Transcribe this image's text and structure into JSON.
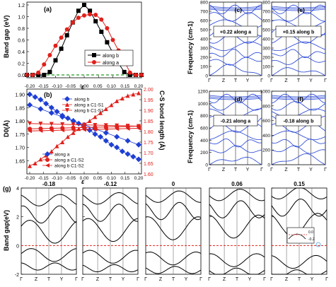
{
  "chart_data": [
    {
      "id": "a",
      "type": "line",
      "panel_label": "(a)",
      "xlabel": "ε",
      "ylabel": "Band gap (eV)",
      "xlim": [
        -0.2,
        0.2
      ],
      "ylim": [
        0.0,
        1.2
      ],
      "x_ticks": [
        "-0.20",
        "-0.15",
        "-0.10",
        "-0.05",
        "0.00",
        "0.05",
        "0.10",
        "0.15",
        "0.20"
      ],
      "y_ticks": [
        "0.0",
        "0.2",
        "0.4",
        "0.6",
        "0.8",
        "1.0",
        "1.2"
      ],
      "legend": [
        "along b",
        "along a"
      ],
      "legend_position": "right",
      "series": [
        {
          "name": "along b",
          "color": "#000000",
          "marker": "square",
          "x": [
            -0.2,
            -0.18,
            -0.16,
            -0.14,
            -0.12,
            -0.1,
            -0.08,
            -0.06,
            -0.04,
            -0.02,
            0.0,
            0.02,
            0.04,
            0.06,
            0.08,
            0.1,
            0.12,
            0.14,
            0.16,
            0.18,
            0.2
          ],
          "values": [
            0.0,
            0.0,
            0.0,
            0.0,
            0.05,
            0.25,
            0.45,
            0.68,
            0.9,
            1.1,
            1.2,
            1.1,
            0.92,
            0.74,
            0.56,
            0.38,
            0.2,
            0.05,
            0.0,
            0.0,
            0.0
          ]
        },
        {
          "name": "along a",
          "color": "#e0201b",
          "marker": "circle",
          "x": [
            -0.2,
            -0.18,
            -0.16,
            -0.14,
            -0.12,
            -0.1,
            -0.08,
            -0.06,
            -0.04,
            -0.02,
            0.0,
            0.02,
            0.04,
            0.06,
            0.08,
            0.1,
            0.12,
            0.14,
            0.16,
            0.18,
            0.2
          ],
          "values": [
            0.0,
            0.0,
            0.04,
            0.18,
            0.34,
            0.5,
            0.64,
            0.78,
            0.9,
            0.98,
            1.02,
            1.04,
            1.03,
            0.95,
            0.8,
            0.6,
            0.42,
            0.24,
            0.04,
            0.0,
            0.0
          ]
        }
      ],
      "reference_line": {
        "y": 0.0,
        "style": "dashed",
        "color": "#1f9a1f"
      }
    },
    {
      "id": "b",
      "type": "line",
      "panel_label": "(b)",
      "xlabel": "ε",
      "ylabel": "D0(Å)",
      "y2label": "C-S bond length (Å)",
      "xlim": [
        -0.2,
        0.2
      ],
      "ylim": [
        1.6,
        1.92
      ],
      "y2lim": [
        1.6,
        2.0
      ],
      "x_ticks": [
        "-0.20",
        "-0.15",
        "-0.10",
        "-0.05",
        "0.00",
        "0.05",
        "0.10",
        "0.15",
        "0.20"
      ],
      "y_ticks": [
        "1.65",
        "1.70",
        "1.75",
        "1.80",
        "1.85",
        "1.90"
      ],
      "y2_ticks": [
        "1.60",
        "1.65",
        "1.70",
        "1.75",
        "1.80",
        "1.85",
        "1.90",
        "1.95",
        "2.00"
      ],
      "legend_top": [
        "along b",
        "along a C1-S1",
        "along b C1-S1"
      ],
      "legend_bottom": [
        "along a",
        "along a C1-S2",
        "along b C1-S2"
      ],
      "series": [
        {
          "name": "along b",
          "color": "#1f3fd4",
          "marker": "diamond",
          "x": [
            -0.2,
            -0.18,
            -0.16,
            -0.14,
            -0.12,
            -0.1,
            -0.08,
            -0.06,
            -0.04,
            -0.02,
            0.0,
            0.02,
            0.04,
            0.06,
            0.08,
            0.1,
            0.12,
            0.14,
            0.16,
            0.18,
            0.2
          ],
          "values": [
            1.9,
            1.89,
            1.88,
            1.865,
            1.85,
            1.835,
            1.82,
            1.81,
            1.8,
            1.79,
            1.775,
            1.765,
            1.75,
            1.74,
            1.725,
            1.71,
            1.7,
            1.685,
            1.675,
            1.665,
            1.655
          ]
        },
        {
          "name": "along a",
          "color": "#1f3fd4",
          "marker": "diamond",
          "x": [
            -0.2,
            -0.16,
            -0.12,
            -0.08,
            -0.04,
            0.0,
            0.04,
            0.08,
            0.12,
            0.16,
            0.2
          ],
          "values": [
            1.86,
            1.845,
            1.83,
            1.815,
            1.8,
            1.785,
            1.77,
            1.755,
            1.74,
            1.725,
            1.71
          ]
        },
        {
          "name": "along a C1-S1",
          "color": "#e0201b",
          "marker": "triangle-up",
          "x": [
            -0.2,
            -0.18,
            -0.16,
            -0.14,
            -0.12,
            -0.1,
            -0.08,
            -0.06,
            -0.04,
            -0.02,
            0.0,
            0.02,
            0.04,
            0.06,
            0.08,
            0.1,
            0.12,
            0.14,
            0.16,
            0.18,
            0.2
          ],
          "values": [
            1.63,
            1.64,
            1.655,
            1.67,
            1.685,
            1.705,
            1.72,
            1.74,
            1.755,
            1.77,
            1.785,
            1.8,
            1.815,
            1.83,
            1.845,
            1.86,
            1.875,
            1.885,
            1.895,
            1.9,
            1.905
          ]
        },
        {
          "name": "along b C1-S1",
          "color": "#e0201b",
          "marker": "triangle-down",
          "x": [
            -0.2,
            -0.16,
            -0.12,
            -0.08,
            -0.04,
            0.0,
            0.04,
            0.08,
            0.12,
            0.16,
            0.2
          ],
          "values": [
            1.79,
            1.789,
            1.788,
            1.787,
            1.786,
            1.785,
            1.784,
            1.783,
            1.782,
            1.781,
            1.78
          ]
        },
        {
          "name": "along a C1-S2",
          "color": "#e0201b",
          "marker": "circle",
          "x": [
            -0.2,
            -0.16,
            -0.12,
            -0.08,
            -0.04,
            0.0,
            0.04,
            0.08,
            0.12,
            0.16,
            0.2
          ],
          "values": [
            1.77,
            1.771,
            1.772,
            1.773,
            1.774,
            1.775,
            1.776,
            1.777,
            1.778,
            1.779,
            1.78
          ]
        },
        {
          "name": "along b C1-S2",
          "color": "#e0201b",
          "marker": "triangle-left",
          "x": [
            -0.2,
            -0.16,
            -0.12,
            -0.08,
            -0.04,
            0.0,
            0.04,
            0.08,
            0.12,
            0.16,
            0.2
          ],
          "values": [
            1.762,
            1.763,
            1.764,
            1.765,
            1.766,
            1.767,
            1.768,
            1.769,
            1.77,
            1.771,
            1.772
          ]
        }
      ]
    },
    {
      "id": "c",
      "type": "line",
      "panel_label": "(c)",
      "ylabel": "Frequency (cm-1)",
      "annotation": "+0.22 along a",
      "ylim": [
        0,
        800
      ],
      "y_ticks": [
        "0",
        "100",
        "200",
        "300",
        "400",
        "500",
        "600",
        "700",
        "800"
      ],
      "x_ticks": [
        "Γ",
        "Z",
        "T",
        "Y",
        "Γ"
      ]
    },
    {
      "id": "e",
      "type": "line",
      "panel_label": "(e)",
      "annotation": "+0.15 along b",
      "ylim": [
        0,
        800
      ],
      "y_ticks": [
        "0",
        "100",
        "200",
        "300",
        "400",
        "500",
        "600",
        "700",
        "800"
      ],
      "x_ticks": [
        "Γ",
        "Z",
        "T",
        "Y",
        "Γ"
      ]
    },
    {
      "id": "d",
      "type": "line",
      "panel_label": "(d)",
      "ylabel": "Frequency (cm-1)",
      "annotation": "-0.21 along a",
      "ylim": [
        0,
        1200
      ],
      "y_ticks": [
        "0",
        "200",
        "400",
        "600",
        "800",
        "1000",
        "1200"
      ],
      "x_ticks": [
        "Γ",
        "Z",
        "T",
        "Y",
        "Γ"
      ]
    },
    {
      "id": "f",
      "type": "line",
      "panel_label": "(f)",
      "annotation": "-0.18 along b",
      "ylim": [
        0,
        1000
      ],
      "y_ticks": [
        "0",
        "200",
        "400",
        "600",
        "800",
        "1000"
      ],
      "x_ticks": [
        "Γ",
        "Z",
        "T",
        "Y",
        "Γ"
      ]
    },
    {
      "id": "g",
      "type": "line",
      "panel_label": "(g)",
      "ylabel": "Band gap(eV)",
      "ylim": [
        -2,
        4
      ],
      "y_ticks": [
        "-2",
        "0",
        "2",
        "4"
      ],
      "x_ticks": [
        "Γ",
        "Z",
        "T",
        "Y",
        "Γ"
      ],
      "subpanels": [
        "-0.18",
        "-0.12",
        "0",
        "0.06",
        "0.15"
      ],
      "fermi_line": {
        "y": 0,
        "style": "dashed",
        "color": "#e0201b"
      },
      "inset_labels": [
        "0.0",
        "-0.2"
      ]
    }
  ],
  "colors": {
    "blue": "#1f3fd4",
    "red": "#e0201b",
    "green": "#1f9a1f",
    "black": "#000000"
  }
}
